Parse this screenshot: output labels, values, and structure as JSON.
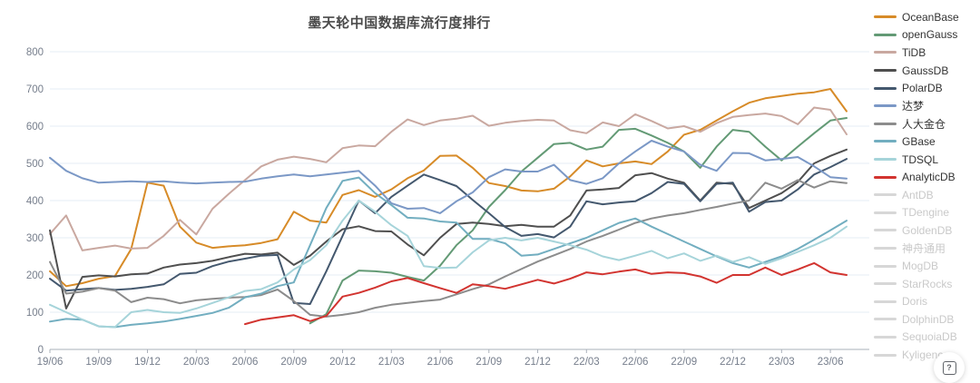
{
  "title": "墨天轮中国数据库流行度排行",
  "help_button": {
    "icon": "?"
  },
  "legend": {
    "items": [
      {
        "label": "OceanBase",
        "color": "#d78b28",
        "active": true
      },
      {
        "label": "openGauss",
        "color": "#639a75",
        "active": true
      },
      {
        "label": "TiDB",
        "color": "#c9a8a0",
        "active": true
      },
      {
        "label": "GaussDB",
        "color": "#4f4f4f",
        "active": true
      },
      {
        "label": "PolarDB",
        "color": "#44586e",
        "active": true
      },
      {
        "label": "达梦",
        "color": "#7b98c6",
        "active": true
      },
      {
        "label": "人大金仓",
        "color": "#8c8c8c",
        "active": true
      },
      {
        "label": "GBase",
        "color": "#72aec0",
        "active": true
      },
      {
        "label": "TDSQL",
        "color": "#a6d4da",
        "active": true
      },
      {
        "label": "AnalyticDB",
        "color": "#d23430",
        "active": true
      },
      {
        "label": "AntDB",
        "color": "#d7d7d7",
        "active": false
      },
      {
        "label": "TDengine",
        "color": "#d7d7d7",
        "active": false
      },
      {
        "label": "GoldenDB",
        "color": "#d7d7d7",
        "active": false
      },
      {
        "label": "神舟通用",
        "color": "#d7d7d7",
        "active": false
      },
      {
        "label": "MogDB",
        "color": "#d7d7d7",
        "active": false
      },
      {
        "label": "StarRocks",
        "color": "#d7d7d7",
        "active": false
      },
      {
        "label": "Doris",
        "color": "#d7d7d7",
        "active": false
      },
      {
        "label": "DolphinDB",
        "color": "#d7d7d7",
        "active": false
      },
      {
        "label": "SequoiaDB",
        "color": "#d7d7d7",
        "active": false
      },
      {
        "label": "Kyligence",
        "color": "#d7d7d7",
        "active": false
      }
    ]
  },
  "chart_data": {
    "type": "line",
    "title": "墨天轮中国数据库流行度排行",
    "ylim": [
      0,
      800
    ],
    "y_ticks": [
      0,
      100,
      200,
      300,
      400,
      500,
      600,
      700,
      800
    ],
    "grid": true,
    "legend_position": "right",
    "x_tick_labels": [
      "19/06",
      "19/09",
      "19/12",
      "20/03",
      "20/06",
      "20/09",
      "20/12",
      "21/03",
      "21/06",
      "21/09",
      "21/12",
      "22/03",
      "22/06",
      "22/09",
      "22/12",
      "23/03",
      "23/06"
    ],
    "months": [
      "19/06",
      "19/07",
      "19/08",
      "19/09",
      "19/10",
      "19/11",
      "19/12",
      "20/01",
      "20/02",
      "20/03",
      "20/04",
      "20/05",
      "20/06",
      "20/07",
      "20/08",
      "20/09",
      "20/10",
      "20/11",
      "20/12",
      "21/01",
      "21/02",
      "21/03",
      "21/04",
      "21/05",
      "21/06",
      "21/07",
      "21/08",
      "21/09",
      "21/10",
      "21/11",
      "21/12",
      "22/01",
      "22/02",
      "22/03",
      "22/04",
      "22/05",
      "22/06",
      "22/07",
      "22/08",
      "22/09",
      "22/10",
      "22/11",
      "22/12",
      "23/01",
      "23/02",
      "23/03",
      "23/04",
      "23/05",
      "23/06",
      "23/07"
    ],
    "series": [
      {
        "name": "OceanBase",
        "color": "#d78b28",
        "values": [
          210,
          170,
          178,
          190,
          197,
          270,
          448,
          440,
          330,
          287,
          273,
          277,
          280,
          286,
          296,
          370,
          346,
          341,
          415,
          428,
          410,
          430,
          460,
          481,
          520,
          521,
          488,
          447,
          439,
          427,
          425,
          432,
          465,
          508,
          492,
          500,
          505,
          498,
          532,
          577,
          590,
          615,
          640,
          663,
          675,
          681,
          687,
          691,
          700,
          640
        ]
      },
      {
        "name": "openGauss",
        "color": "#639a75",
        "values": [
          null,
          null,
          null,
          null,
          null,
          null,
          null,
          null,
          null,
          null,
          null,
          null,
          null,
          null,
          null,
          null,
          70,
          95,
          185,
          212,
          210,
          206,
          195,
          185,
          225,
          280,
          320,
          383,
          428,
          478,
          515,
          552,
          555,
          537,
          545,
          590,
          593,
          575,
          555,
          532,
          488,
          545,
          590,
          585,
          545,
          508,
          545,
          581,
          615,
          622
        ]
      },
      {
        "name": "TiDB",
        "color": "#c9a8a0",
        "values": [
          310,
          360,
          266,
          273,
          279,
          271,
          273,
          305,
          348,
          309,
          378,
          418,
          455,
          492,
          510,
          518,
          512,
          503,
          541,
          548,
          546,
          585,
          618,
          603,
          615,
          620,
          628,
          601,
          609,
          614,
          617,
          615,
          589,
          581,
          610,
          600,
          632,
          614,
          594,
          600,
          585,
          608,
          625,
          630,
          634,
          627,
          605,
          650,
          644,
          578
        ]
      },
      {
        "name": "GaussDB",
        "color": "#4f4f4f",
        "values": [
          320,
          110,
          195,
          199,
          196,
          202,
          204,
          220,
          228,
          232,
          238,
          248,
          257,
          255,
          260,
          227,
          252,
          290,
          323,
          331,
          318,
          317,
          282,
          253,
          300,
          337,
          341,
          337,
          331,
          335,
          330,
          330,
          360,
          427,
          430,
          434,
          468,
          474,
          459,
          448,
          400,
          448,
          445,
          380,
          400,
          420,
          450,
          500,
          520,
          537
        ]
      },
      {
        "name": "PolarDB",
        "color": "#44586e",
        "values": [
          190,
          158,
          162,
          165,
          160,
          163,
          168,
          175,
          203,
          206,
          224,
          236,
          244,
          252,
          254,
          125,
          122,
          210,
          305,
          400,
          366,
          410,
          440,
          470,
          455,
          439,
          402,
          366,
          329,
          305,
          310,
          301,
          330,
          398,
          390,
          395,
          398,
          420,
          450,
          445,
          398,
          445,
          448,
          370,
          396,
          400,
          430,
          470,
          490,
          512
        ]
      },
      {
        "name": "达梦",
        "color": "#7b98c6",
        "values": [
          515,
          480,
          460,
          448,
          450,
          452,
          450,
          452,
          448,
          446,
          448,
          450,
          451,
          459,
          465,
          470,
          465,
          470,
          475,
          480,
          440,
          393,
          378,
          380,
          366,
          398,
          422,
          463,
          484,
          478,
          478,
          496,
          455,
          445,
          460,
          500,
          532,
          561,
          545,
          532,
          496,
          480,
          528,
          527,
          508,
          512,
          517,
          492,
          463,
          459
        ]
      },
      {
        "name": "人大金仓",
        "color": "#8c8c8c",
        "values": [
          235,
          150,
          155,
          165,
          158,
          127,
          139,
          135,
          124,
          132,
          136,
          139,
          141,
          146,
          161,
          130,
          93,
          88,
          93,
          100,
          112,
          120,
          125,
          130,
          134,
          148,
          162,
          175,
          196,
          216,
          236,
          253,
          270,
          290,
          305,
          322,
          340,
          352,
          360,
          366,
          375,
          383,
          392,
          400,
          448,
          432,
          455,
          435,
          452,
          447
        ]
      },
      {
        "name": "GBase",
        "color": "#72aec0",
        "values": [
          75,
          82,
          80,
          62,
          60,
          66,
          70,
          75,
          82,
          90,
          98,
          112,
          140,
          150,
          170,
          180,
          280,
          380,
          453,
          462,
          420,
          388,
          354,
          352,
          344,
          341,
          297,
          297,
          285,
          252,
          255,
          270,
          285,
          300,
          320,
          340,
          352,
          330,
          310,
          290,
          270,
          250,
          232,
          220,
          235,
          250,
          270,
          295,
          320,
          346
        ]
      },
      {
        "name": "TDSQL",
        "color": "#a6d4da",
        "values": [
          120,
          100,
          80,
          62,
          60,
          100,
          106,
          100,
          98,
          110,
          125,
          140,
          157,
          162,
          180,
          215,
          240,
          280,
          346,
          400,
          370,
          334,
          305,
          224,
          219,
          220,
          261,
          293,
          300,
          293,
          300,
          290,
          280,
          268,
          250,
          240,
          252,
          265,
          245,
          258,
          238,
          252,
          235,
          248,
          230,
          245,
          262,
          280,
          300,
          330
        ]
      },
      {
        "name": "AnalyticDB",
        "color": "#d23430",
        "values": [
          null,
          null,
          null,
          null,
          null,
          null,
          null,
          null,
          null,
          null,
          null,
          null,
          68,
          80,
          86,
          92,
          76,
          90,
          142,
          152,
          166,
          183,
          192,
          178,
          165,
          152,
          175,
          170,
          163,
          175,
          187,
          177,
          190,
          207,
          202,
          209,
          215,
          203,
          207,
          205,
          196,
          179,
          200,
          200,
          220,
          200,
          215,
          232,
          207,
          200
        ]
      }
    ]
  }
}
